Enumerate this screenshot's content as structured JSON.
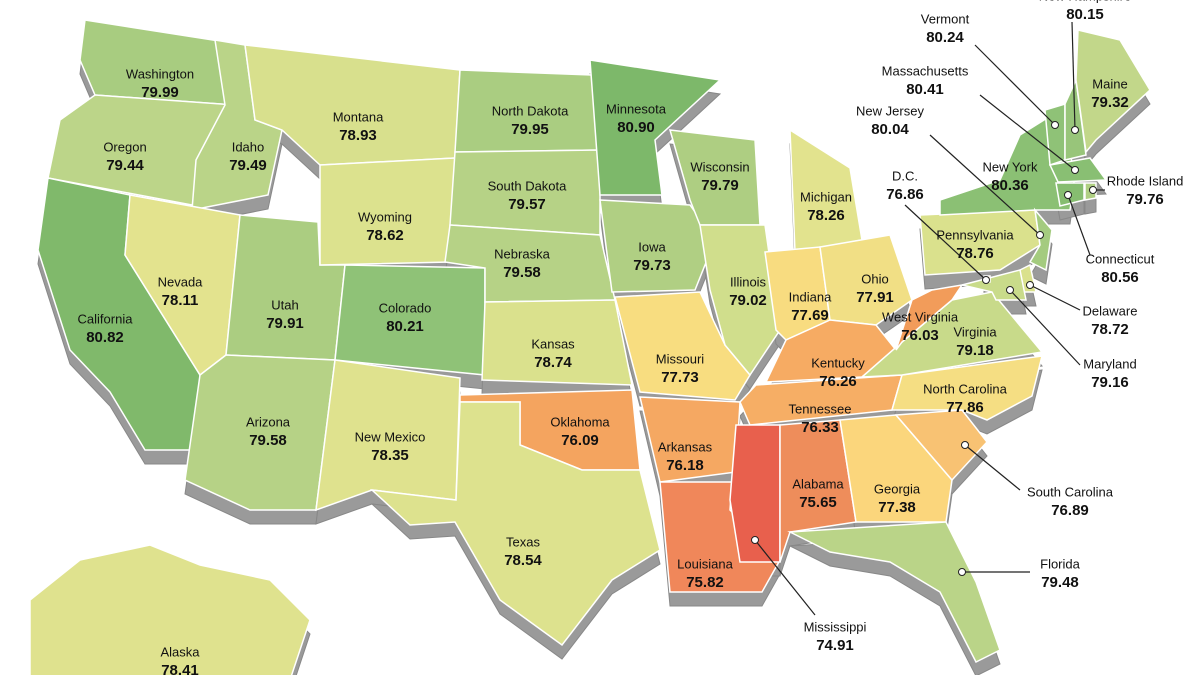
{
  "states": [
    {
      "name": "Washington",
      "value": 79.99,
      "color": "#a8cc80"
    },
    {
      "name": "Oregon",
      "value": 79.44,
      "color": "#bcd589"
    },
    {
      "name": "Idaho",
      "value": 79.49,
      "color": "#bad488"
    },
    {
      "name": "Montana",
      "value": 78.93,
      "color": "#d8e08d"
    },
    {
      "name": "California",
      "value": 80.82,
      "color": "#80b96b"
    },
    {
      "name": "Nevada",
      "value": 78.11,
      "color": "#e3e38e"
    },
    {
      "name": "Utah",
      "value": 79.91,
      "color": "#abcd81"
    },
    {
      "name": "Arizona",
      "value": 79.58,
      "color": "#b6d286"
    },
    {
      "name": "Wyoming",
      "value": 78.62,
      "color": "#dce28e"
    },
    {
      "name": "Colorado",
      "value": 80.21,
      "color": "#8fc277"
    },
    {
      "name": "New Mexico",
      "value": 78.35,
      "color": "#dfe28e"
    },
    {
      "name": "North Dakota",
      "value": 79.95,
      "color": "#aacd81"
    },
    {
      "name": "South Dakota",
      "value": 79.57,
      "color": "#b6d286"
    },
    {
      "name": "Nebraska",
      "value": 79.58,
      "color": "#b6d286"
    },
    {
      "name": "Kansas",
      "value": 78.74,
      "color": "#dae18d"
    },
    {
      "name": "Oklahoma",
      "value": 76.09,
      "color": "#f4a45f"
    },
    {
      "name": "Texas",
      "value": 78.54,
      "color": "#dde28e"
    },
    {
      "name": "Minnesota",
      "value": 80.9,
      "value_label": "80.90",
      "color": "#7db86a"
    },
    {
      "name": "Iowa",
      "value": 79.73,
      "color": "#b0cf83"
    },
    {
      "name": "Missouri",
      "value": 77.73,
      "color": "#f8dd80"
    },
    {
      "name": "Arkansas",
      "value": 76.18,
      "color": "#f5a862"
    },
    {
      "name": "Louisiana",
      "value": 75.82,
      "color": "#f0875a"
    },
    {
      "name": "Wisconsin",
      "value": 79.79,
      "color": "#aece82"
    },
    {
      "name": "Illinois",
      "value": 79.02,
      "color": "#d0de8c"
    },
    {
      "name": "Michigan",
      "value": 78.26,
      "color": "#e2e38e"
    },
    {
      "name": "Indiana",
      "value": 77.69,
      "color": "#f8dc80"
    },
    {
      "name": "Ohio",
      "value": 77.91,
      "color": "#f1df85"
    },
    {
      "name": "Kentucky",
      "value": 76.26,
      "color": "#f6ab63"
    },
    {
      "name": "Tennessee",
      "value": 76.33,
      "color": "#f6ae65"
    },
    {
      "name": "Mississippi",
      "value": 74.91,
      "color": "#e8604d"
    },
    {
      "name": "Alabama",
      "value": 75.65,
      "color": "#ee8d5b"
    },
    {
      "name": "Georgia",
      "value": 77.38,
      "color": "#fbd67c"
    },
    {
      "name": "Florida",
      "value": 79.48,
      "color": "#bad488"
    },
    {
      "name": "South Carolina",
      "value": 76.89,
      "color": "#f8c273"
    },
    {
      "name": "North Carolina",
      "value": 77.86,
      "color": "#f5de83"
    },
    {
      "name": "Virginia",
      "value": 79.18,
      "color": "#c8da8a"
    },
    {
      "name": "West Virginia",
      "value": 76.03,
      "color": "#f29c5a"
    },
    {
      "name": "Pennsylvania",
      "value": 78.76,
      "color": "#dae18d"
    },
    {
      "name": "New York",
      "value": 80.36,
      "color": "#8bc074"
    },
    {
      "name": "New Jersey",
      "value": 80.04,
      "color": "#a4cb7f"
    },
    {
      "name": "Delaware",
      "value": 78.72,
      "color": "#dae18d"
    },
    {
      "name": "Maryland",
      "value": 79.16,
      "color": "#c9db8a"
    },
    {
      "name": "D.C.",
      "value": 76.86,
      "color": "#f8c273"
    },
    {
      "name": "Vermont",
      "value": 80.24,
      "color": "#8fc277"
    },
    {
      "name": "New Hampshire",
      "value": 80.15,
      "color": "#98c57a"
    },
    {
      "name": "Maine",
      "value": 79.32,
      "color": "#c2d78a"
    },
    {
      "name": "Massachusetts",
      "value": 80.41,
      "color": "#89bf73"
    },
    {
      "name": "Connecticut",
      "value": 80.56,
      "color": "#86bd70"
    },
    {
      "name": "Rhode Island",
      "value": 79.76,
      "color": "#afcf83"
    },
    {
      "name": "Alaska",
      "value": 78.41,
      "color": "#dfe28e"
    }
  ]
}
